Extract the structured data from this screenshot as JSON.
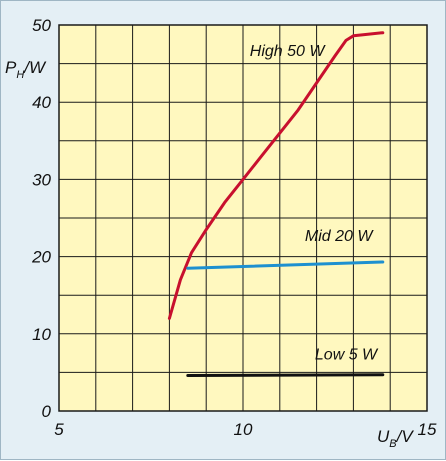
{
  "chart_data": {
    "type": "line",
    "x_range": [
      5,
      15
    ],
    "y_range": [
      0,
      50
    ],
    "x_ticks": [
      5,
      10,
      15
    ],
    "x_tick_labels": [
      "5",
      "10",
      "15"
    ],
    "y_ticks": [
      0,
      10,
      20,
      30,
      40,
      50
    ],
    "y_tick_labels": [
      "0",
      "10",
      "20",
      "30",
      "40",
      "50"
    ],
    "x_grid_step": 1,
    "y_grid_step": 5,
    "grid": true,
    "xlabel": {
      "main": "U",
      "sub": "B",
      "unit": "/V"
    },
    "ylabel": {
      "main": "P",
      "sub": "H",
      "unit": "/W"
    },
    "colors": {
      "plot_background": "#fff8bf",
      "figure_background": "#e4eff5",
      "grid": "#1a1a1a",
      "high": "#c8102e",
      "mid": "#1e90d0",
      "low": "#111111"
    },
    "series": [
      {
        "name": "High 50 W",
        "color": "#c8102e",
        "x": [
          8.0,
          8.3,
          8.6,
          9.0,
          9.5,
          10.0,
          10.5,
          11.0,
          11.5,
          12.0,
          12.5,
          12.8,
          13.0,
          13.2,
          13.8
        ],
        "y": [
          12.0,
          17.0,
          20.5,
          23.5,
          27.0,
          30.0,
          33.0,
          36.0,
          39.0,
          42.5,
          46.0,
          48.0,
          48.6,
          48.7,
          49.0
        ]
      },
      {
        "name": "Mid 20 W",
        "color": "#1e90d0",
        "x": [
          8.5,
          13.8
        ],
        "y": [
          18.5,
          19.3
        ]
      },
      {
        "name": "Low 5 W",
        "color": "#111111",
        "x": [
          8.5,
          13.8
        ],
        "y": [
          4.6,
          4.7
        ]
      }
    ],
    "series_label_positions": [
      {
        "x": 11.2,
        "y": 46.0
      },
      {
        "x": 12.6,
        "y": 22.0
      },
      {
        "x": 12.8,
        "y": 6.7
      }
    ]
  }
}
